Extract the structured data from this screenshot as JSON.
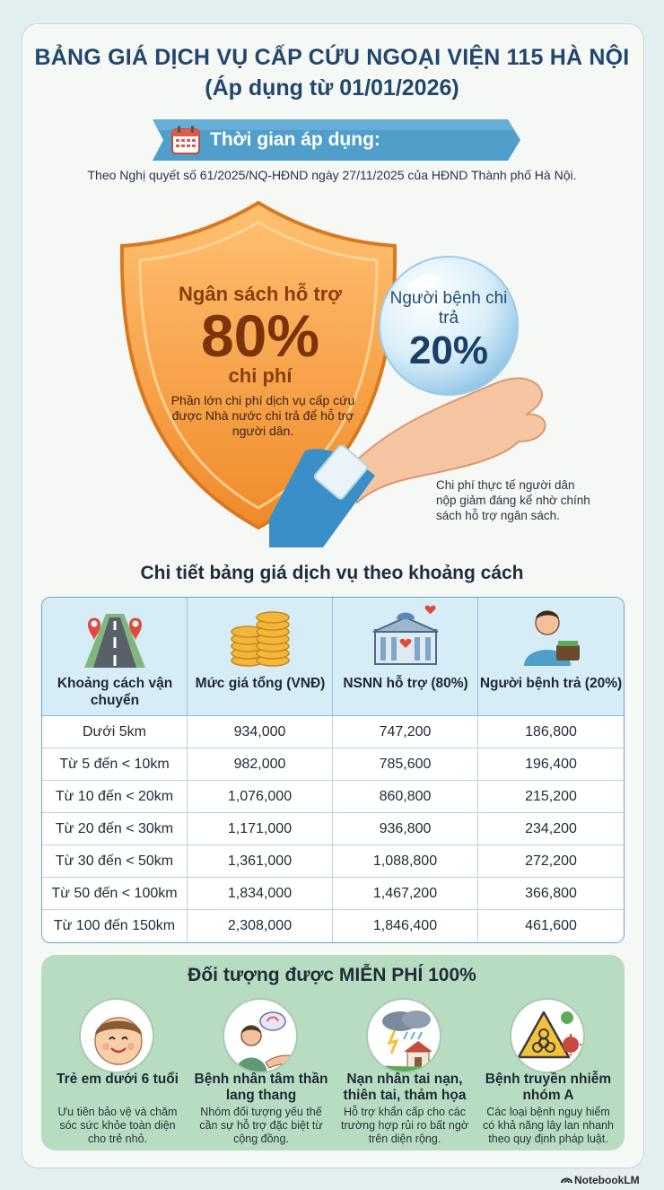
{
  "header": {
    "title_line1": "BẢNG GIÁ DỊCH VỤ CẤP CỨU NGOẠI VIỆN 115 HÀ NỘI",
    "title_line2": "(Áp dụng từ 01/01/2026)"
  },
  "banner": {
    "label": "Thời gian áp dụng:",
    "icon": "calendar-icon"
  },
  "decree_text": "Theo Nghị quyết số 61/2025/NQ-HĐND ngày 27/11/2025 của HĐND Thành phố Hà Nội.",
  "budget": {
    "line1": "Ngân sách hỗ trợ",
    "percent": "80%",
    "line2": "chi phí",
    "description": "Phần lớn chi phí dịch vụ cấp cứu được Nhà nước chi trả để hỗ trợ người dân."
  },
  "patient": {
    "label": "Người bệnh chi trả",
    "percent": "20%",
    "note": "Chi phí thực tế người dân nộp giảm đáng kể nhờ chính sách hỗ trợ ngân sách."
  },
  "table": {
    "title": "Chi tiết bảng giá dịch vụ theo khoảng cách",
    "headers": [
      {
        "label": "Khoảng cách vận chuyển",
        "icon": "road-map-pin-icon"
      },
      {
        "label": "Mức giá tổng (VNĐ)",
        "icon": "coin-stack-icon"
      },
      {
        "label": "NSNN hỗ trợ (80%)",
        "icon": "government-building-icon"
      },
      {
        "label": "Người bệnh trả (20%)",
        "icon": "person-wallet-icon"
      }
    ],
    "rows": [
      [
        "Dưới 5km",
        "934,000",
        "747,200",
        "186,800"
      ],
      [
        "Từ 5 đến < 10km",
        "982,000",
        "785,600",
        "196,400"
      ],
      [
        "Từ 10 đến < 20km",
        "1,076,000",
        "860,800",
        "215,200"
      ],
      [
        "Từ 20 đến < 30km",
        "1,171,000",
        "936,800",
        "234,200"
      ],
      [
        "Từ 30 đến < 50km",
        "1,361,000",
        "1,088,800",
        "272,200"
      ],
      [
        "Từ 50 đến < 100km",
        "1,834,000",
        "1,467,200",
        "366,800"
      ],
      [
        "Từ 100 đến 150km",
        "2,308,000",
        "1,846,400",
        "461,600"
      ]
    ]
  },
  "free": {
    "title": "Đối tượng được MIỄN PHÍ 100%",
    "items": [
      {
        "name": "Trẻ em dưới 6 tuổi",
        "desc": "Ưu tiên bảo vệ và chăm sóc sức khỏe toàn diện cho trẻ nhỏ.",
        "icon": "child-face-icon"
      },
      {
        "name": "Bệnh nhân tâm thần lang thang",
        "desc": "Nhóm đối tượng yếu thế cần sự hỗ trợ đặc biệt từ cộng đồng.",
        "icon": "helping-hand-person-icon"
      },
      {
        "name": "Nạn nhân tai nạn, thiên tai, thảm họa",
        "desc": "Hỗ trợ khẩn cấp cho các trường hợp rủi ro bất ngờ trên diện rộng.",
        "icon": "storm-house-icon"
      },
      {
        "name": "Bệnh truyền nhiễm nhóm A",
        "desc": "Các loại bệnh nguy hiểm có khả năng lây lan nhanh theo quy định pháp luật.",
        "icon": "biohazard-icon"
      }
    ]
  },
  "brand": "NotebookLM",
  "colors": {
    "title_blue": "#21476c",
    "banner_blue": "#4f9fca",
    "shield_orange": "#f5a347",
    "table_header": "#d6ecf6",
    "free_green": "#b8dcc2"
  }
}
